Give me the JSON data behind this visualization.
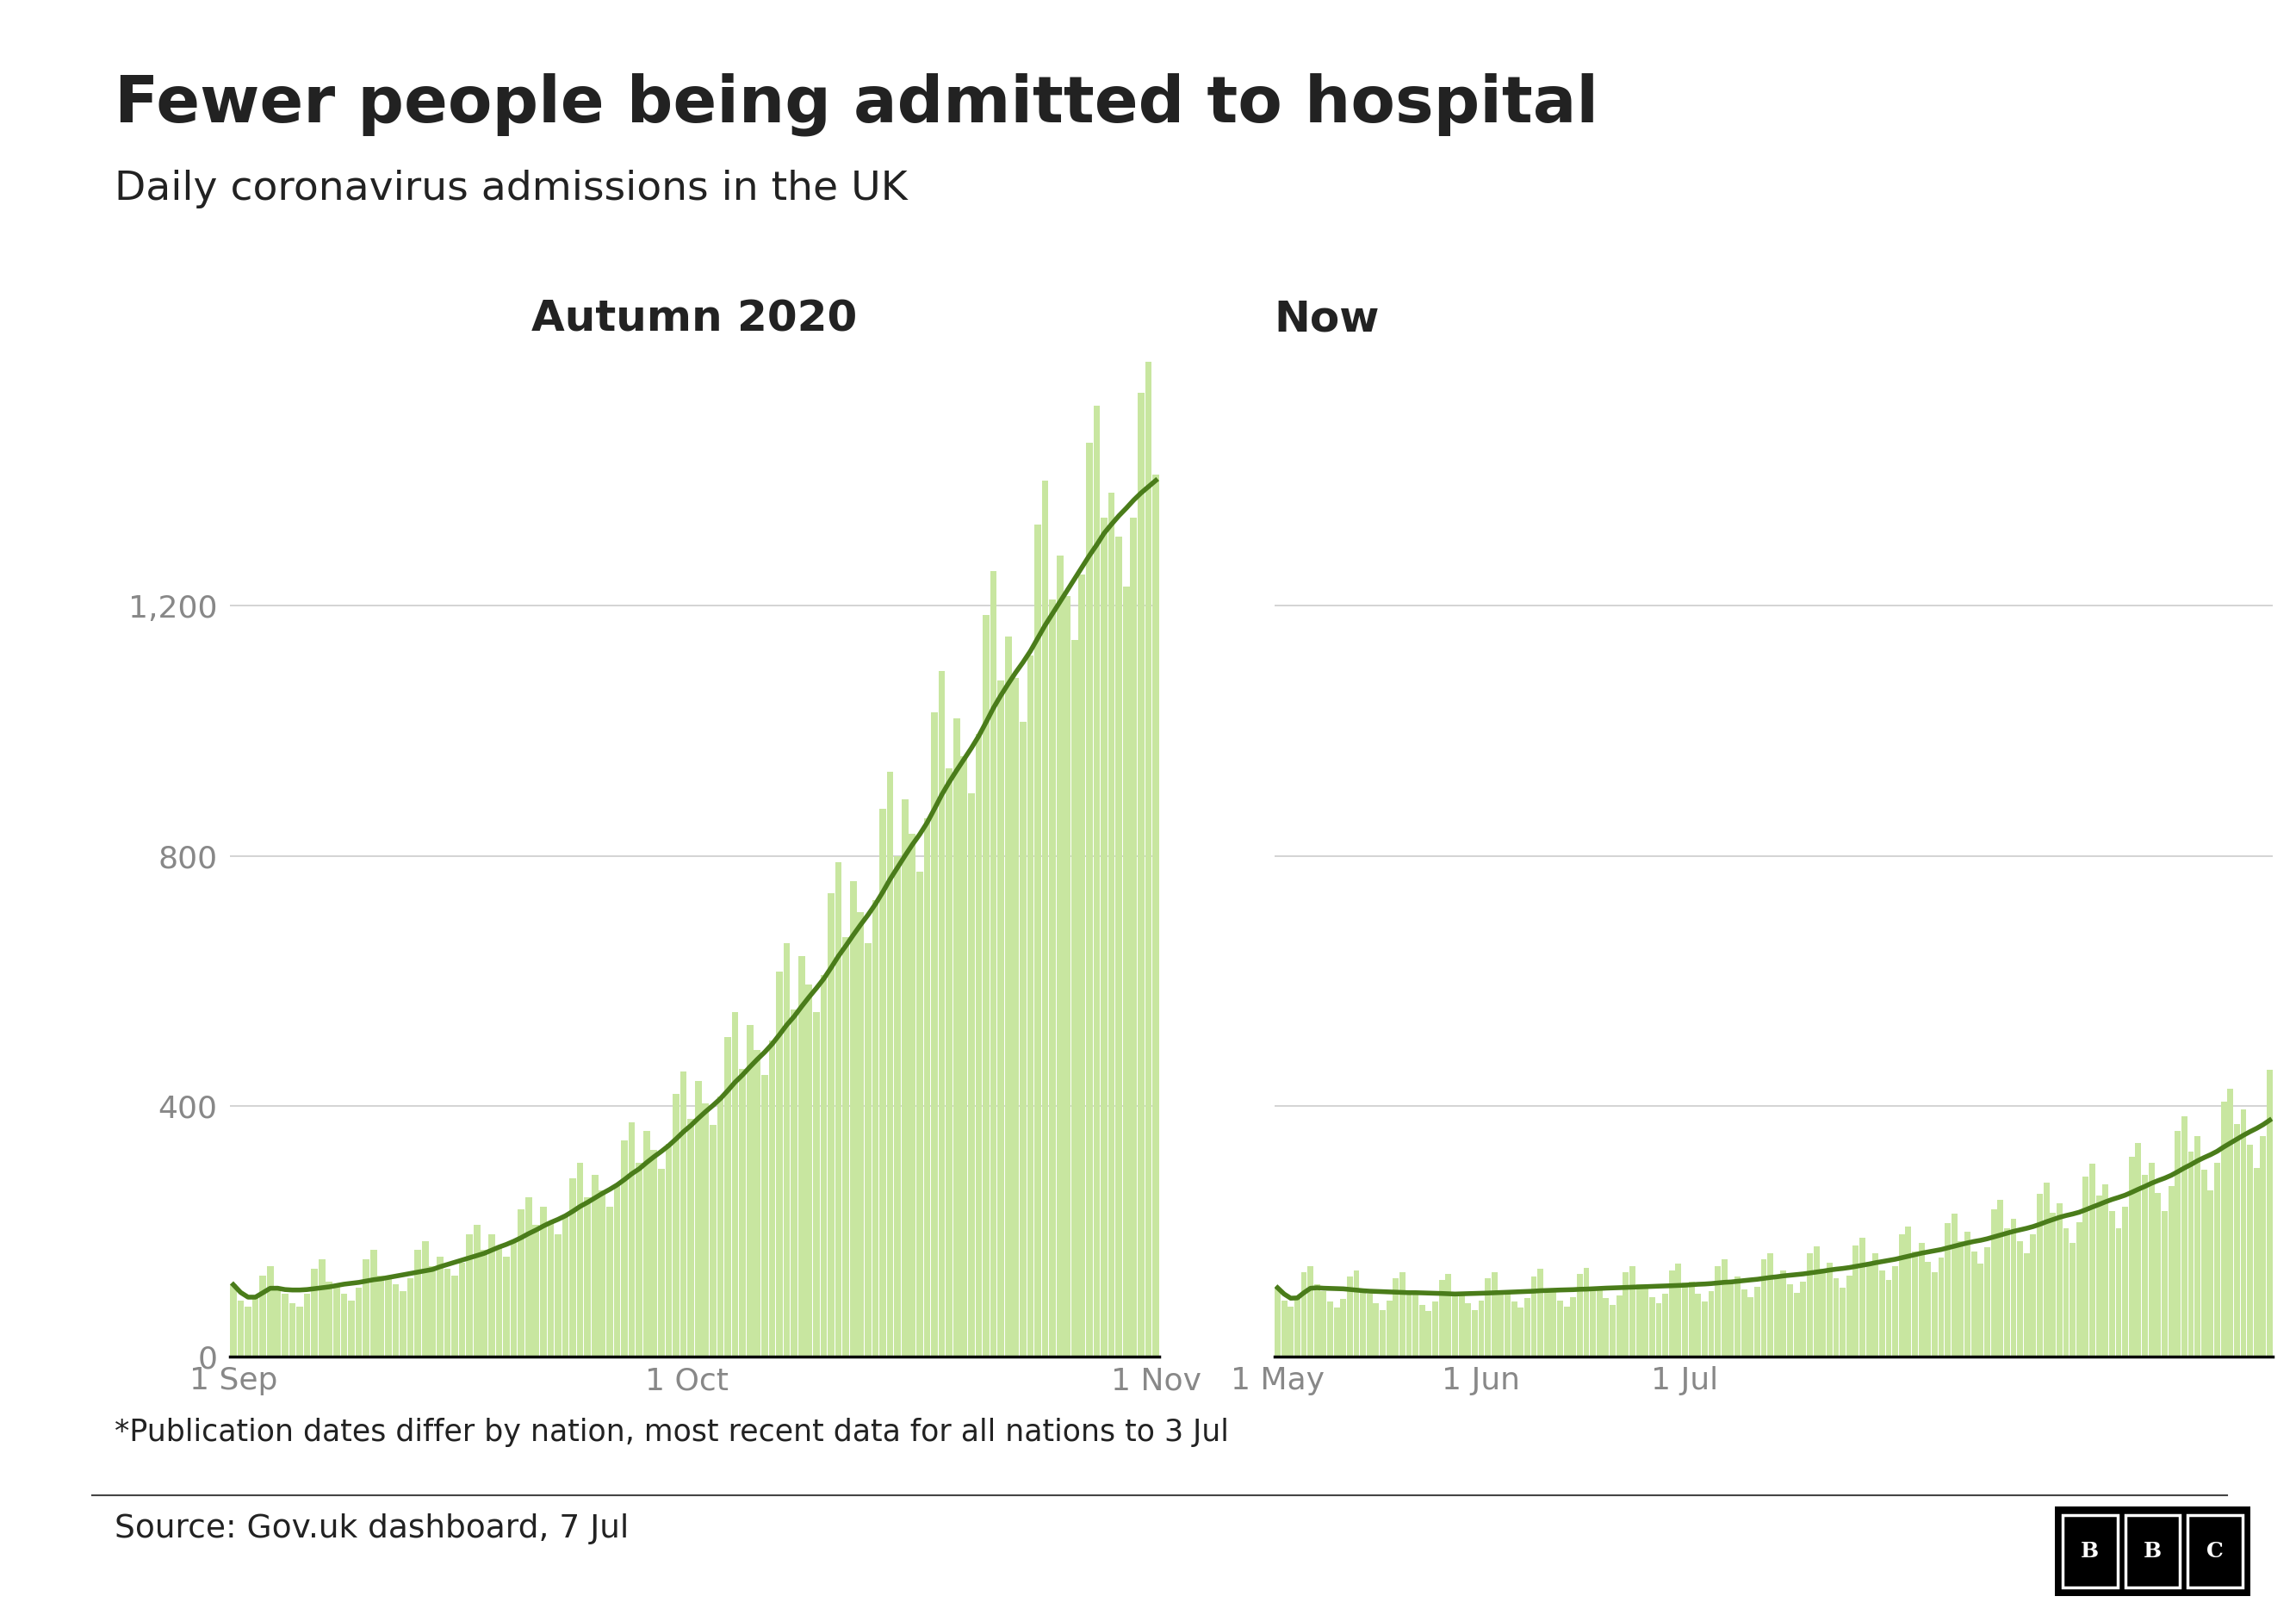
{
  "title": "Fewer people being admitted to hospital",
  "subtitle": "Daily coronavirus admissions in the UK",
  "footnote": "*Publication dates differ by nation, most recent data for all nations to 3 Jul",
  "source": "Source: Gov.uk dashboard, 7 Jul",
  "left_panel_title": "Autumn 2020",
  "right_panel_title": "Now",
  "bar_color": "#c8e6a0",
  "line_color": "#4a7c1a",
  "axis_color": "#000000",
  "grid_color": "#cccccc",
  "text_color": "#222222",
  "tick_color": "#888888",
  "background_color": "#ffffff",
  "ylim": [
    0,
    1600
  ],
  "yticks": [
    0,
    400,
    800,
    1200
  ],
  "left_xticklabels": [
    "1 Sep",
    "1 Oct",
    "1 Nov"
  ],
  "right_xticklabels": [
    "1 May",
    "1 Jun",
    "1 Jul"
  ],
  "autumn_bars": [
    115,
    90,
    80,
    95,
    130,
    145,
    110,
    100,
    85,
    80,
    100,
    140,
    155,
    120,
    115,
    100,
    90,
    110,
    155,
    170,
    130,
    130,
    115,
    105,
    125,
    170,
    185,
    145,
    160,
    140,
    130,
    150,
    195,
    210,
    170,
    195,
    175,
    160,
    185,
    235,
    255,
    210,
    240,
    215,
    195,
    225,
    285,
    310,
    255,
    290,
    265,
    240,
    275,
    345,
    375,
    310,
    360,
    330,
    300,
    340,
    420,
    455,
    380,
    440,
    405,
    370,
    415,
    510,
    550,
    460,
    530,
    490,
    450,
    505,
    615,
    660,
    555,
    640,
    595,
    550,
    610,
    740,
    790,
    670,
    760,
    710,
    660,
    730,
    875,
    935,
    800,
    890,
    835,
    775,
    860,
    1030,
    1095,
    940,
    1020,
    960,
    900,
    995,
    1185,
    1255,
    1080,
    1150,
    1085,
    1015,
    1120,
    1330,
    1400,
    1210,
    1280,
    1215,
    1145,
    1250,
    1460,
    1520,
    1340,
    1380,
    1310,
    1230,
    1340,
    1540,
    1590,
    1410
  ],
  "now_bars": [
    110,
    90,
    80,
    95,
    135,
    145,
    115,
    105,
    88,
    78,
    92,
    128,
    138,
    108,
    100,
    85,
    75,
    90,
    125,
    135,
    105,
    100,
    83,
    73,
    88,
    122,
    132,
    102,
    102,
    85,
    75,
    90,
    125,
    135,
    105,
    105,
    88,
    78,
    93,
    128,
    140,
    108,
    108,
    90,
    80,
    95,
    132,
    142,
    112,
    112,
    93,
    82,
    98,
    135,
    145,
    115,
    115,
    95,
    85,
    100,
    138,
    148,
    118,
    120,
    100,
    88,
    105,
    145,
    155,
    122,
    128,
    108,
    95,
    112,
    155,
    165,
    130,
    138,
    115,
    102,
    120,
    165,
    176,
    140,
    150,
    125,
    110,
    130,
    178,
    190,
    152,
    165,
    138,
    122,
    144,
    195,
    208,
    168,
    182,
    152,
    135,
    158,
    214,
    228,
    185,
    200,
    168,
    148,
    175,
    235,
    250,
    205,
    220,
    185,
    165,
    195,
    260,
    278,
    230,
    245,
    205,
    182,
    215,
    288,
    308,
    258,
    275,
    232,
    205,
    240,
    320,
    342,
    290,
    310,
    262,
    232,
    272,
    360,
    384,
    328,
    352,
    298,
    265,
    310,
    408,
    428,
    372,
    395,
    338,
    302,
    352,
    458
  ]
}
